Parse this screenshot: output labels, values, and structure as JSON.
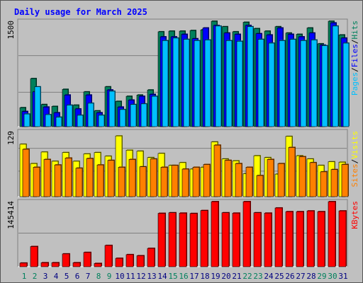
{
  "chart_data": {
    "type": "bar",
    "title": "Daily usage for March 2025",
    "categories": [
      "1",
      "2",
      "3",
      "4",
      "5",
      "6",
      "7",
      "8",
      "9",
      "10",
      "11",
      "12",
      "13",
      "14",
      "15",
      "16",
      "17",
      "18",
      "19",
      "20",
      "21",
      "22",
      "23",
      "24",
      "25",
      "26",
      "27",
      "28",
      "29",
      "30",
      "31"
    ],
    "weekend_days": [
      "1",
      "2",
      "8",
      "9",
      "15",
      "16",
      "22",
      "23",
      "29",
      "30"
    ],
    "colors": {
      "hits": "#00805c",
      "files": "#0000ff",
      "pages": "#00c0ff",
      "visits": "#ffff00",
      "sites": "#ff8000",
      "kbytes": "#ff0000",
      "weekday_label": "#000080",
      "weekend_label": "#00805c"
    },
    "panels": [
      {
        "id": "top",
        "ytick": "1500",
        "ymax": 1700,
        "axis_labels": [
          "Pages",
          "/",
          "Files",
          "/",
          "Hits"
        ],
        "axis_label_colors": [
          "#00c0ff",
          "#000000",
          "#0000ff",
          "#000000",
          "#00805c"
        ],
        "series": [
          {
            "key": "hits",
            "values": [
              300,
              760,
              350,
              320,
              590,
              340,
              550,
              250,
              630,
              400,
              480,
              500,
              580,
              1500,
              1510,
              1510,
              1520,
              1530,
              1680,
              1580,
              1500,
              1650,
              1550,
              1510,
              1580,
              1480,
              1460,
              1560,
              1310,
              1690,
              1450
            ]
          },
          {
            "key": "files",
            "values": [
              240,
              550,
              310,
              220,
              500,
              280,
              500,
              220,
              580,
              310,
              420,
              480,
              510,
              1420,
              1420,
              1460,
              1390,
              1560,
              1600,
              1480,
              1460,
              1600,
              1470,
              1450,
              1560,
              1460,
              1420,
              1480,
              1290,
              1640,
              1400
            ]
          },
          {
            "key": "pages",
            "values": [
              200,
              630,
              190,
              150,
              340,
              180,
              370,
              180,
              560,
              270,
              350,
              360,
              480,
              1360,
              1400,
              1380,
              1360,
              1370,
              1590,
              1360,
              1350,
              1580,
              1380,
              1320,
              1360,
              1380,
              1360,
              1370,
              1280,
              1590,
              1320
            ]
          }
        ]
      },
      {
        "id": "middle",
        "ytick": "129",
        "ymax": 146,
        "axis_labels": [
          "Sites",
          "/",
          "Visits"
        ],
        "axis_label_colors": [
          "#ff8000",
          "#000000",
          "#ffff00"
        ],
        "series": [
          {
            "key": "visits",
            "values": [
              114,
              72,
              97,
              77,
              96,
              77,
              93,
              96,
              88,
              132,
              101,
              99,
              85,
              94,
              68,
              74,
              60,
              64,
              119,
              82,
              78,
              50,
              89,
              85,
              49,
              131,
              89,
              82,
              68,
              76,
              75
            ]
          },
          {
            "key": "sites",
            "values": [
              103,
              64,
              81,
              69,
              84,
              62,
              83,
              69,
              79,
              64,
              81,
              65,
              82,
              64,
              68,
              60,
              64,
              70,
              112,
              79,
              72,
              64,
              46,
              81,
              72,
              107,
              87,
              74,
              54,
              59,
              70
            ]
          }
        ]
      },
      {
        "id": "bottom",
        "ytick": "145414",
        "ymax": 183000,
        "axis_labels": [
          "KBytes"
        ],
        "axis_label_colors": [
          "#ff0000"
        ],
        "series": [
          {
            "key": "kbytes",
            "values": [
              10000,
              55000,
              11000,
              11000,
              35000,
              11000,
              39000,
              9000,
              58000,
              23000,
              33000,
              30000,
              50000,
              145414,
              147000,
              146000,
              145000,
              153000,
              182000,
              147000,
              146000,
              180000,
              147000,
              146000,
              160000,
              150000,
              150000,
              152000,
              150000,
              200000,
              152000
            ]
          }
        ]
      }
    ]
  }
}
